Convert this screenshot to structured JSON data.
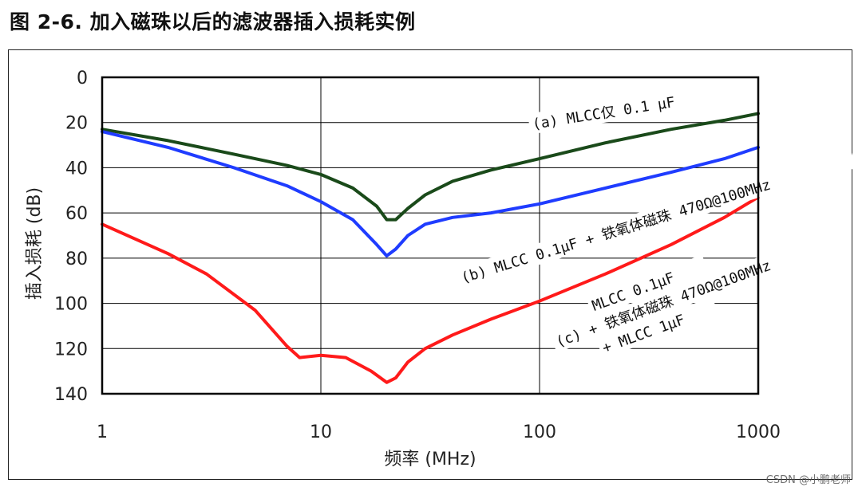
{
  "figure_title": "图 2-6.  加入磁珠以后的滤波器插入损耗实例",
  "watermark": "CSDN @小鹏老师",
  "chart_data": {
    "type": "line",
    "xscale": "log",
    "xlim": [
      1,
      1000
    ],
    "ylim": [
      0,
      140
    ],
    "y_inverted": true,
    "xlabel": "频率 (MHz)",
    "ylabel": "插入损耗 (dB)",
    "x_ticks": [
      "1",
      "10",
      "100",
      "1000"
    ],
    "y_ticks": [
      "0",
      "20",
      "40",
      "60",
      "80",
      "100",
      "120",
      "140"
    ],
    "grid": true,
    "series": [
      {
        "label": "(a)  MLCC仅 0.1 μF",
        "color": "#1a4a1a",
        "x": [
          1,
          2,
          4,
          7,
          10,
          14,
          18,
          20,
          22,
          25,
          30,
          40,
          60,
          100,
          200,
          400,
          700,
          1000
        ],
        "y": [
          23,
          28,
          34,
          39,
          43,
          49,
          57,
          63,
          63,
          58,
          52,
          46,
          41,
          36,
          29,
          23,
          19,
          16
        ]
      },
      {
        "label": "(b)  MLCC 0.1μF + 铁氧体磁珠 470Ω@100MHz",
        "color": "#1f3cff",
        "x": [
          1,
          2,
          4,
          7,
          10,
          14,
          18,
          20,
          22,
          25,
          30,
          40,
          60,
          100,
          200,
          400,
          700,
          1000
        ],
        "y": [
          24,
          31,
          40,
          48,
          55,
          63,
          74,
          79,
          76,
          70,
          65,
          62,
          60,
          56,
          49,
          42,
          36,
          31
        ]
      },
      {
        "label": "(c)  MLCC 0.1μF + 铁氧体磁珠 470Ω@100MHz + MLCC 1μF",
        "color": "#ff1a1a",
        "x": [
          1,
          2,
          3,
          5,
          7,
          8,
          10,
          13,
          17,
          20,
          22,
          25,
          30,
          40,
          60,
          100,
          200,
          400,
          700,
          1000
        ],
        "y": [
          65,
          78,
          87,
          103,
          119,
          124,
          123,
          124,
          130,
          135,
          133,
          126,
          120,
          114,
          107,
          99,
          87,
          74,
          62,
          53
        ]
      }
    ],
    "annotations": [
      {
        "lines": [
          "(a)  MLCC仅 0.1 μF"
        ]
      },
      {
        "lines": [
          "(b)  MLCC 0.1μF + 铁氧体磁珠 470Ω@100MHz"
        ]
      },
      {
        "lines": [
          "MLCC 0.1μF",
          "(c)  + 铁氧体磁珠 470Ω@100MHz",
          "+ MLCC 1μF"
        ]
      }
    ]
  }
}
